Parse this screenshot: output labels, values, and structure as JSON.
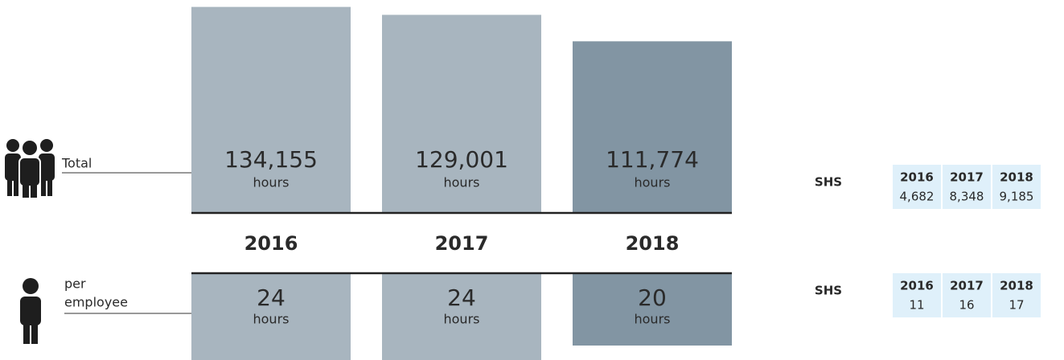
{
  "chart_data": [
    {
      "type": "bar",
      "label": "Total",
      "unit": "hours",
      "categories": [
        "2016",
        "2017",
        "2018"
      ],
      "values": [
        134155,
        129001,
        111774
      ],
      "value_labels": [
        "134,155",
        "129,001",
        "111,774"
      ],
      "colors": [
        "#a8b5bf",
        "#a8b5bf",
        "#8295a3"
      ],
      "ylim": [
        0,
        135000
      ]
    },
    {
      "type": "bar",
      "label_lines": [
        "per",
        "employee"
      ],
      "unit": "hours",
      "values": [
        24,
        24,
        20
      ],
      "colors": [
        "#a8b5bf",
        "#a8b5bf",
        "#8295a3"
      ],
      "ylim": [
        0,
        24
      ]
    }
  ],
  "shs_tables": [
    {
      "label": "SHS",
      "columns": [
        "2016",
        "2017",
        "2018"
      ],
      "values": [
        "4,682",
        "8,348",
        "9,185"
      ]
    },
    {
      "label": "SHS",
      "columns": [
        "2016",
        "2017",
        "2018"
      ],
      "values": [
        "11",
        "16",
        "17"
      ]
    }
  ]
}
